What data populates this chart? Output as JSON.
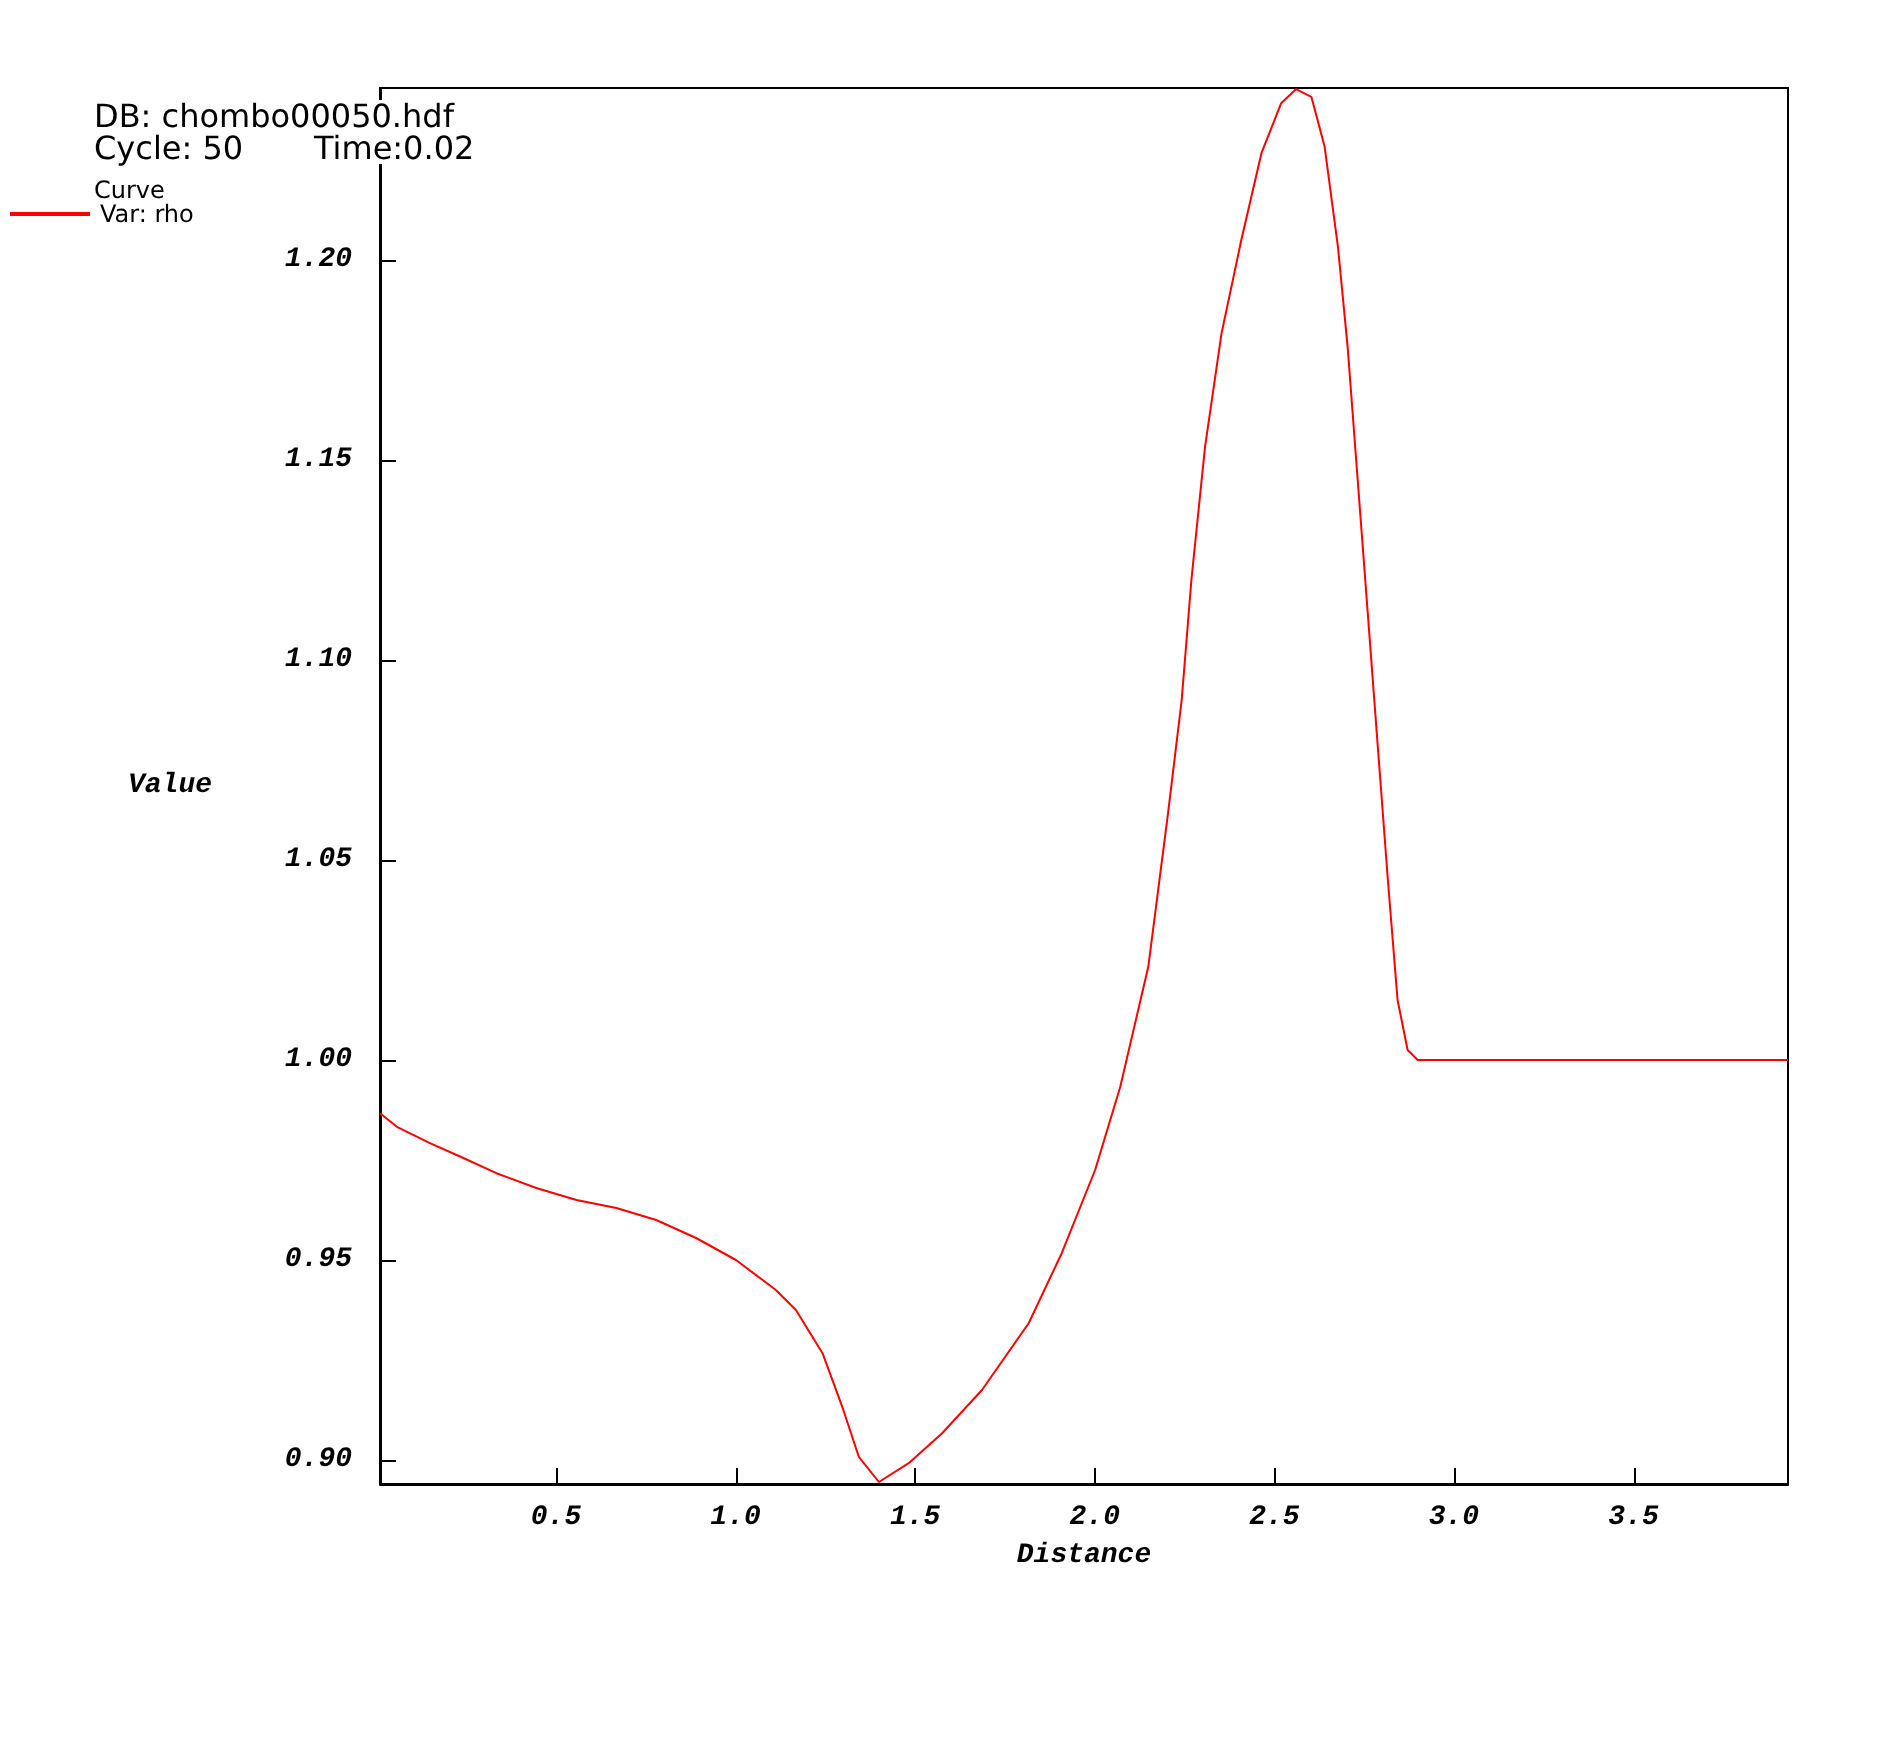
{
  "chart_data": {
    "type": "line",
    "annotations": [
      "DB: chombo00050.hdf",
      "Cycle: 50",
      "Time:0.02"
    ],
    "xlabel": "Distance",
    "ylabel": "Value",
    "legend_title": "Curve",
    "legend": "top left",
    "grid": false,
    "marker": "none",
    "line_style": "solid",
    "xlim": [
      0.01,
      3.93
    ],
    "ylim": [
      0.894,
      1.243
    ],
    "xticks": [
      {
        "value": 0.5,
        "label": "0.5"
      },
      {
        "value": 1,
        "label": "1.0"
      },
      {
        "value": 1.5,
        "label": "1.5"
      },
      {
        "value": 2,
        "label": "2.0"
      },
      {
        "value": 2.5,
        "label": "2.5"
      },
      {
        "value": 3,
        "label": "3.0"
      },
      {
        "value": 3.5,
        "label": "3.5"
      }
    ],
    "yticks": [
      {
        "value": 0.9,
        "label": "0.90"
      },
      {
        "value": 0.95,
        "label": "0.95"
      },
      {
        "value": 1,
        "label": "1.00"
      },
      {
        "value": 1.05,
        "label": "1.05"
      },
      {
        "value": 1.1,
        "label": "1.10"
      },
      {
        "value": 1.15,
        "label": "1.15"
      },
      {
        "value": 1.2,
        "label": "1.20"
      }
    ],
    "series": [
      {
        "name": "Var: rho",
        "color": "#ff0000",
        "x": [
          0.01,
          0.057,
          0.149,
          0.242,
          0.334,
          0.445,
          0.557,
          0.668,
          0.779,
          0.89,
          1.001,
          1.112,
          1.168,
          1.242,
          1.297,
          1.343,
          1.399,
          1.482,
          1.575,
          1.686,
          1.816,
          1.908,
          2.001,
          2.071,
          2.149,
          2.204,
          2.242,
          2.269,
          2.307,
          2.353,
          2.408,
          2.464,
          2.519,
          2.56,
          2.603,
          2.64,
          2.677,
          2.704,
          2.732,
          2.76,
          2.788,
          2.816,
          2.843,
          2.871,
          2.899,
          3.93
        ],
        "values": [
          0.9867,
          0.9833,
          0.9792,
          0.9755,
          0.9717,
          0.968,
          0.965,
          0.963,
          0.96,
          0.9555,
          0.95,
          0.9425,
          0.9375,
          0.9267,
          0.9133,
          0.9008,
          0.8945,
          0.8992,
          0.9067,
          0.9175,
          0.9342,
          0.9517,
          0.9725,
          0.9933,
          1.0233,
          1.0617,
          1.09,
          1.12,
          1.1533,
          1.1817,
          1.205,
          1.2267,
          1.2392,
          1.2427,
          1.2408,
          1.2283,
          1.2033,
          1.1783,
          1.145,
          1.1117,
          1.0783,
          1.045,
          1.015,
          1.0025,
          1.0,
          1.0
        ]
      }
    ]
  }
}
